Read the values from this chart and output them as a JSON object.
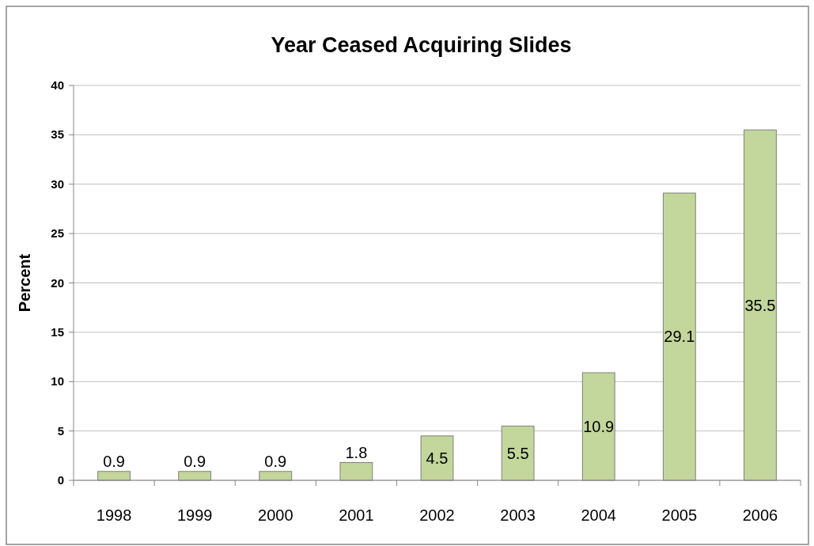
{
  "chart_data": {
    "type": "bar",
    "title": "Year Ceased Acquiring Slides",
    "ylabel": "Percent",
    "categories": [
      "1998",
      "1999",
      "2000",
      "2001",
      "2002",
      "2003",
      "2004",
      "2005",
      "2006"
    ],
    "values": [
      0.9,
      0.9,
      0.9,
      1.8,
      4.5,
      5.5,
      10.9,
      29.1,
      35.5
    ],
    "color": "#c3d69b",
    "ylim": [
      0,
      40
    ],
    "yticks": [
      0,
      5,
      10,
      15,
      20,
      25,
      30,
      35,
      40
    ],
    "grid": "y",
    "data_labels": true
  }
}
